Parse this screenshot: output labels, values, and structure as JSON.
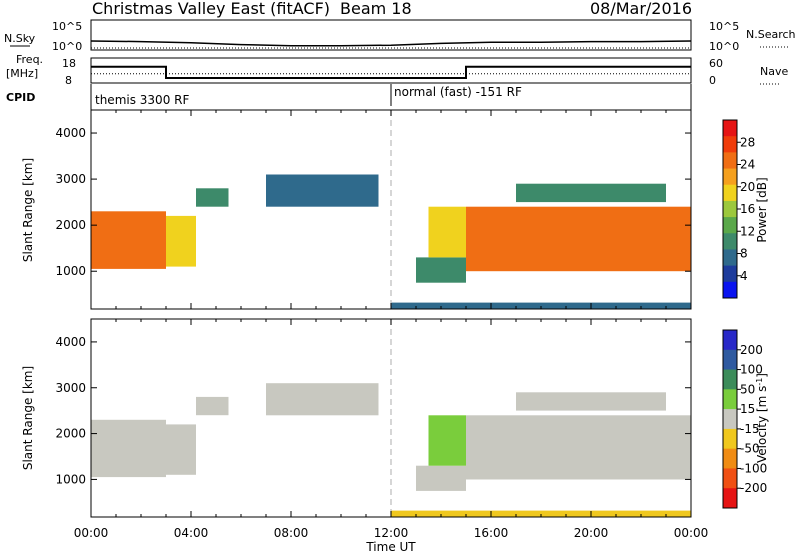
{
  "header": {
    "site": "Christmas Valley East (fitACF)",
    "beam": "Beam 18",
    "date": "08/Mar/2016"
  },
  "top_panels": {
    "nsky_label": "N.Sky",
    "nsky_ticks": [
      "10^5",
      "10^0"
    ],
    "nsearch_label": "N.Search",
    "nsearch_ticks": [
      "10^5",
      "10^0"
    ],
    "freq_label_1": "Freq.",
    "freq_label_2": "[MHz]",
    "freq_ticks": [
      "18",
      "8"
    ],
    "nave_label": "Nave",
    "nave_ticks": [
      "60",
      "0"
    ],
    "cpid_label": "CPID",
    "cpid_left": "themis 3300 RF",
    "cpid_right": "normal (fast) -151 RF"
  },
  "colors": {
    "power_scale": [
      "#0a14f0",
      "#1e3c9c",
      "#2f6a8c",
      "#3d8a6a",
      "#5aa84a",
      "#9cc83c",
      "#f0d21e",
      "#f5a01e",
      "#f06e14",
      "#f03c0a",
      "#e61414"
    ],
    "velocity_scale": [
      "#2828c8",
      "#2f5aa0",
      "#3c8c5a",
      "#7acd3c",
      "#c8c8c0",
      "#f0c81e",
      "#f08c14",
      "#f05014",
      "#e61414"
    ]
  },
  "chart_data": [
    {
      "type": "line",
      "name": "N.Sky / N.Search",
      "x_range": [
        "00:00",
        "24:00"
      ],
      "ylim_log10": [
        0,
        5
      ],
      "series": [
        {
          "name": "N.Sky",
          "x": [
            0,
            2,
            4,
            6,
            8,
            10,
            12,
            14,
            16,
            18,
            20,
            22,
            24
          ],
          "values_log10": [
            1.5,
            1.4,
            1.2,
            0.9,
            0.7,
            0.7,
            0.8,
            1.1,
            1.3,
            1.3,
            1.4,
            1.4,
            1.5
          ]
        },
        {
          "name": "N.Search",
          "x": [
            0,
            4,
            8,
            12,
            16,
            20,
            24
          ],
          "values_log10": [
            1.0,
            1.0,
            1.0,
            1.0,
            1.0,
            1.0,
            1.0
          ]
        }
      ]
    },
    {
      "type": "line",
      "name": "Freq / Nave",
      "xlim": [
        0,
        24
      ],
      "ylabel": "Freq. [MHz]",
      "ylim": [
        8,
        18
      ],
      "series": [
        {
          "name": "Freq.",
          "x": [
            0,
            3.0,
            3.0,
            15.0,
            15.0,
            24
          ],
          "values": [
            14.5,
            14.5,
            10.0,
            10.0,
            14.5,
            14.5
          ]
        },
        {
          "name": "Nave",
          "x": [
            0,
            3.0,
            3.0,
            15.0,
            15.0,
            24
          ],
          "values_nave": [
            22,
            22,
            22,
            22,
            22,
            22
          ]
        }
      ]
    },
    {
      "type": "heatmap",
      "name": "Power",
      "xlabel": "",
      "ylabel": "Slant Range [km]",
      "xlim": [
        0,
        24
      ],
      "ylim": [
        180,
        4500
      ],
      "xticks": [
        "00:00",
        "04:00",
        "08:00",
        "12:00",
        "16:00",
        "20:00",
        "00:00"
      ],
      "yticks": [
        "1000",
        "2000",
        "3000",
        "4000"
      ],
      "colorbar": {
        "label": "Power [dB]",
        "ticks": [
          "28",
          "24",
          "20",
          "16",
          "12",
          "8",
          "4"
        ],
        "range": [
          0,
          30
        ]
      },
      "regions": [
        {
          "t": [
            0.0,
            3.0
          ],
          "r": [
            1050,
            2300
          ],
          "v": 22
        },
        {
          "t": [
            3.0,
            4.2
          ],
          "r": [
            1100,
            2200
          ],
          "v": 18
        },
        {
          "t": [
            4.2,
            5.5
          ],
          "r": [
            2400,
            2800
          ],
          "v": 9
        },
        {
          "t": [
            7.0,
            11.5
          ],
          "r": [
            2400,
            3100
          ],
          "v": 8
        },
        {
          "t": [
            13.0,
            15.0
          ],
          "r": [
            750,
            1300
          ],
          "v": 10
        },
        {
          "t": [
            13.5,
            15.0
          ],
          "r": [
            1300,
            2400
          ],
          "v": 18
        },
        {
          "t": [
            15.0,
            24.0
          ],
          "r": [
            1000,
            2400
          ],
          "v": 24
        },
        {
          "t": [
            17.0,
            23.0
          ],
          "r": [
            2500,
            2900
          ],
          "v": 10
        },
        {
          "t": [
            12.0,
            24.0
          ],
          "r": [
            180,
            320
          ],
          "v": 6
        }
      ]
    },
    {
      "type": "heatmap",
      "name": "Velocity",
      "xlabel": "Time UT",
      "ylabel": "Slant Range [km]",
      "xlim": [
        0,
        24
      ],
      "ylim": [
        180,
        4500
      ],
      "xticks": [
        "00:00",
        "04:00",
        "08:00",
        "12:00",
        "16:00",
        "20:00",
        "00:00"
      ],
      "yticks": [
        "1000",
        "2000",
        "3000",
        "4000"
      ],
      "colorbar": {
        "label": "Velocity [m s^-1]",
        "ticks": [
          "200",
          "100",
          "50",
          "15",
          "-15",
          "-50",
          "-100",
          "-200"
        ],
        "range": [
          -250,
          250
        ]
      },
      "regions": [
        {
          "t": [
            0.0,
            3.0
          ],
          "r": [
            1050,
            2300
          ],
          "v": 0
        },
        {
          "t": [
            3.0,
            4.2
          ],
          "r": [
            1100,
            2200
          ],
          "v": 0
        },
        {
          "t": [
            4.2,
            5.5
          ],
          "r": [
            2400,
            2800
          ],
          "v": 0
        },
        {
          "t": [
            7.0,
            11.5
          ],
          "r": [
            2400,
            3100
          ],
          "v": 0
        },
        {
          "t": [
            13.0,
            15.0
          ],
          "r": [
            750,
            1300
          ],
          "v": 0
        },
        {
          "t": [
            13.5,
            15.0
          ],
          "r": [
            1300,
            2400
          ],
          "v": 40
        },
        {
          "t": [
            15.0,
            24.0
          ],
          "r": [
            1000,
            2400
          ],
          "v": 0
        },
        {
          "t": [
            17.0,
            23.0
          ],
          "r": [
            2500,
            2900
          ],
          "v": 0
        },
        {
          "t": [
            12.0,
            24.0
          ],
          "r": [
            180,
            320
          ],
          "v": -40
        }
      ]
    }
  ]
}
